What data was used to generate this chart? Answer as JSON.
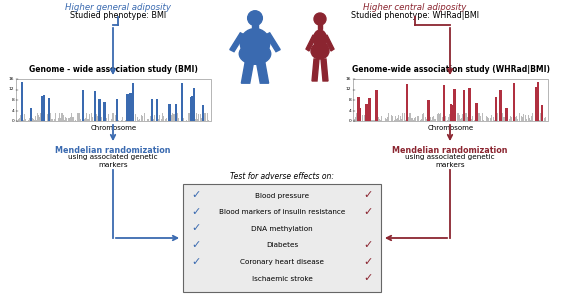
{
  "blue_color": "#3A6AB0",
  "red_color": "#8B2530",
  "light_blue": "#3A6AB0",
  "light_red": "#B03040",
  "box_bg": "#E8E8E8",
  "left_title": "Higher general adiposity",
  "left_subtitle": "Studied phenotype: BMI",
  "right_title": "Higher central adiposity",
  "right_subtitle": "Studied phenotype: WHRad|BMI",
  "left_gwas_title": "Genome - wide association study (BMI)",
  "right_gwas_title": "Genome-wide association study (WHRad|BMI)",
  "chromosome_label": "Chromosome",
  "box_header": "Test for adverse effects on:",
  "traits": [
    "Blood pressure",
    "Blood markers of insulin resistance",
    "DNA methylation",
    "Diabetes",
    "Coronary heart disease",
    "Ischaemic stroke"
  ],
  "blue_checks": [
    true,
    true,
    true,
    true,
    true,
    false
  ],
  "red_checks": [
    true,
    true,
    false,
    true,
    true,
    true
  ],
  "left_mr_bold": "Mendelian randomization",
  "left_mr_normal": "using associated genetic\nmarkers",
  "right_mr_bold": "Mendelian randomization",
  "right_mr_normal": "using associated genetic\nmarkers",
  "fig_w": 5.66,
  "fig_h": 3.06,
  "dpi": 100
}
